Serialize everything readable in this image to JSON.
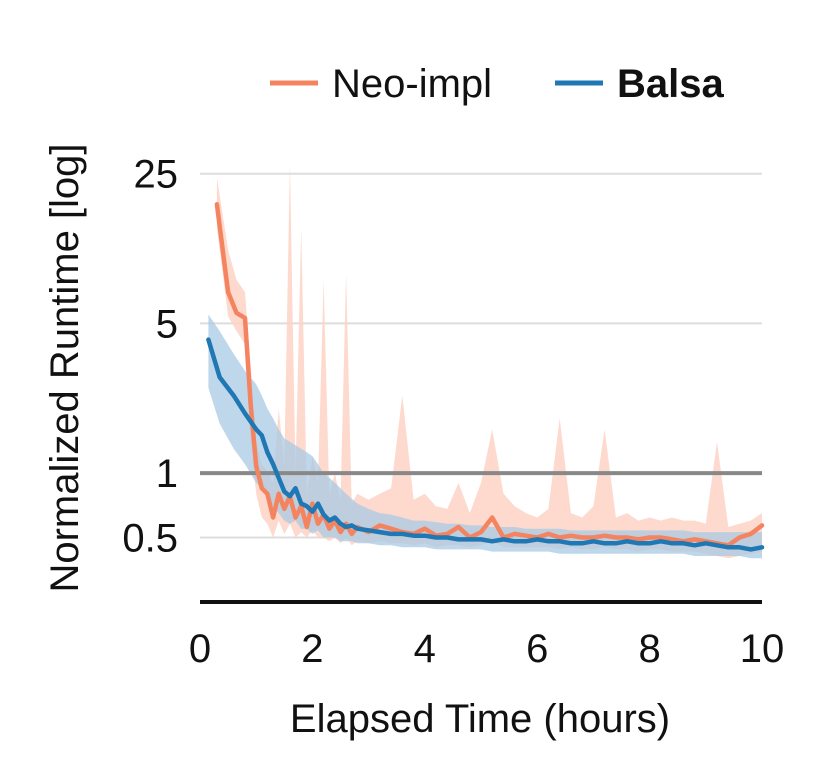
{
  "colors": {
    "neo": "#F4845F",
    "neo_band": "#FDD3C4",
    "balsa": "#1F77B4",
    "balsa_band": "#A9C9E3",
    "grid": "#DDDDDD",
    "reference": "#888888",
    "axis": "#111111"
  },
  "chart_data": {
    "type": "line",
    "title": "",
    "xlabel": "Elapsed Time (hours)",
    "ylabel": "Normalized Runtime [log]",
    "yscale": "log",
    "xlim": [
      0,
      10
    ],
    "ylim": [
      0.25,
      40
    ],
    "xticks": [
      0,
      2,
      4,
      6,
      8,
      10
    ],
    "xtick_labels": [
      "0",
      "2",
      "4",
      "6",
      "8",
      "10"
    ],
    "yticks": [
      0.5,
      1,
      5,
      25
    ],
    "ytick_labels": [
      "0.5",
      "1",
      "5",
      "25"
    ],
    "reference_line": 1,
    "grid": "horizontal",
    "legend_position": "top-right",
    "series": [
      {
        "name": "Neo-impl",
        "bold": false,
        "x": [
          0.3,
          0.5,
          0.65,
          0.8,
          0.9,
          1.0,
          1.1,
          1.2,
          1.3,
          1.4,
          1.5,
          1.6,
          1.7,
          1.8,
          1.9,
          2.0,
          2.1,
          2.2,
          2.3,
          2.4,
          2.5,
          2.6,
          2.7,
          2.8,
          3.0,
          3.2,
          3.4,
          3.6,
          3.8,
          4.0,
          4.2,
          4.4,
          4.6,
          4.8,
          5.0,
          5.2,
          5.4,
          5.6,
          5.8,
          6.0,
          6.2,
          6.4,
          6.6,
          6.8,
          7.0,
          7.2,
          7.4,
          7.6,
          7.8,
          8.0,
          8.2,
          8.4,
          8.6,
          8.8,
          9.0,
          9.2,
          9.4,
          9.6,
          9.8,
          10.0
        ],
        "y": [
          18,
          7,
          5.6,
          5.3,
          2.1,
          1.08,
          0.85,
          0.8,
          0.62,
          0.8,
          0.68,
          0.78,
          0.62,
          0.7,
          0.56,
          0.72,
          0.58,
          0.64,
          0.55,
          0.6,
          0.53,
          0.58,
          0.52,
          0.56,
          0.53,
          0.57,
          0.55,
          0.53,
          0.52,
          0.55,
          0.51,
          0.52,
          0.56,
          0.5,
          0.53,
          0.62,
          0.5,
          0.52,
          0.51,
          0.5,
          0.52,
          0.5,
          0.51,
          0.5,
          0.5,
          0.51,
          0.5,
          0.5,
          0.49,
          0.5,
          0.5,
          0.49,
          0.48,
          0.49,
          0.48,
          0.47,
          0.46,
          0.5,
          0.52,
          0.57
        ],
        "lower": [
          14,
          5.4,
          4.6,
          4.0,
          1.4,
          0.8,
          0.62,
          0.58,
          0.5,
          0.6,
          0.52,
          0.58,
          0.5,
          0.53,
          0.5,
          0.54,
          0.5,
          0.5,
          0.48,
          0.5,
          0.47,
          0.5,
          0.46,
          0.48,
          0.47,
          0.48,
          0.47,
          0.47,
          0.46,
          0.47,
          0.45,
          0.46,
          0.46,
          0.45,
          0.46,
          0.48,
          0.45,
          0.45,
          0.45,
          0.45,
          0.45,
          0.44,
          0.45,
          0.44,
          0.44,
          0.45,
          0.44,
          0.44,
          0.43,
          0.44,
          0.44,
          0.43,
          0.43,
          0.43,
          0.42,
          0.41,
          0.4,
          0.41,
          0.42,
          0.43
        ],
        "upper": [
          24,
          11,
          8,
          7,
          3.2,
          1.4,
          1.1,
          1.02,
          0.9,
          2.0,
          1.1,
          28,
          1.0,
          14,
          0.8,
          1.2,
          0.9,
          8.0,
          0.8,
          1.0,
          0.75,
          8.5,
          0.72,
          0.8,
          0.75,
          0.8,
          0.85,
          2.3,
          0.75,
          0.8,
          0.7,
          0.68,
          0.9,
          0.65,
          0.9,
          1.6,
          0.8,
          0.7,
          0.65,
          0.62,
          0.68,
          1.8,
          0.65,
          0.62,
          0.7,
          1.6,
          0.62,
          0.65,
          0.6,
          0.62,
          0.6,
          0.62,
          0.6,
          0.6,
          0.58,
          1.4,
          0.56,
          0.58,
          0.6,
          0.65
        ]
      },
      {
        "name": "Balsa",
        "bold": true,
        "x": [
          0.15,
          0.35,
          0.6,
          0.8,
          1.0,
          1.1,
          1.2,
          1.3,
          1.4,
          1.5,
          1.6,
          1.7,
          1.8,
          1.9,
          2.0,
          2.1,
          2.2,
          2.3,
          2.4,
          2.5,
          2.6,
          2.7,
          2.8,
          3.0,
          3.2,
          3.4,
          3.6,
          3.8,
          4.0,
          4.2,
          4.4,
          4.6,
          4.8,
          5.0,
          5.2,
          5.4,
          5.6,
          5.8,
          6.0,
          6.2,
          6.4,
          6.6,
          6.8,
          7.0,
          7.2,
          7.4,
          7.6,
          7.8,
          8.0,
          8.2,
          8.4,
          8.6,
          8.8,
          9.0,
          9.2,
          9.4,
          9.6,
          9.8,
          10.0
        ],
        "y": [
          4.2,
          2.8,
          2.3,
          1.9,
          1.6,
          1.5,
          1.25,
          1.1,
          0.95,
          0.82,
          0.78,
          0.85,
          0.72,
          0.7,
          0.66,
          0.72,
          0.64,
          0.6,
          0.62,
          0.58,
          0.56,
          0.57,
          0.55,
          0.54,
          0.53,
          0.52,
          0.52,
          0.51,
          0.51,
          0.5,
          0.5,
          0.49,
          0.49,
          0.49,
          0.48,
          0.49,
          0.48,
          0.48,
          0.49,
          0.48,
          0.48,
          0.47,
          0.47,
          0.48,
          0.47,
          0.47,
          0.48,
          0.47,
          0.47,
          0.48,
          0.47,
          0.47,
          0.46,
          0.47,
          0.46,
          0.45,
          0.45,
          0.44,
          0.45
        ],
        "lower": [
          2.5,
          1.7,
          1.3,
          1.1,
          0.9,
          0.85,
          0.78,
          0.7,
          0.65,
          0.6,
          0.58,
          0.6,
          0.55,
          0.55,
          0.52,
          0.54,
          0.5,
          0.5,
          0.5,
          0.48,
          0.48,
          0.48,
          0.47,
          0.47,
          0.46,
          0.46,
          0.45,
          0.45,
          0.45,
          0.44,
          0.44,
          0.44,
          0.44,
          0.44,
          0.43,
          0.43,
          0.43,
          0.43,
          0.43,
          0.43,
          0.42,
          0.42,
          0.42,
          0.42,
          0.42,
          0.42,
          0.42,
          0.42,
          0.42,
          0.42,
          0.42,
          0.42,
          0.41,
          0.41,
          0.41,
          0.41,
          0.41,
          0.4,
          0.4
        ],
        "upper": [
          5.5,
          4.6,
          3.6,
          3.0,
          2.6,
          2.3,
          2.0,
          1.8,
          1.6,
          1.45,
          1.4,
          1.35,
          1.3,
          1.25,
          1.2,
          1.1,
          1.0,
          0.95,
          0.9,
          0.85,
          0.8,
          0.76,
          0.72,
          0.68,
          0.65,
          0.64,
          0.62,
          0.6,
          0.6,
          0.59,
          0.58,
          0.58,
          0.57,
          0.57,
          0.56,
          0.56,
          0.56,
          0.55,
          0.55,
          0.55,
          0.55,
          0.54,
          0.54,
          0.54,
          0.54,
          0.54,
          0.54,
          0.54,
          0.54,
          0.54,
          0.54,
          0.54,
          0.53,
          0.53,
          0.53,
          0.53,
          0.53,
          0.53,
          0.53
        ]
      }
    ]
  }
}
